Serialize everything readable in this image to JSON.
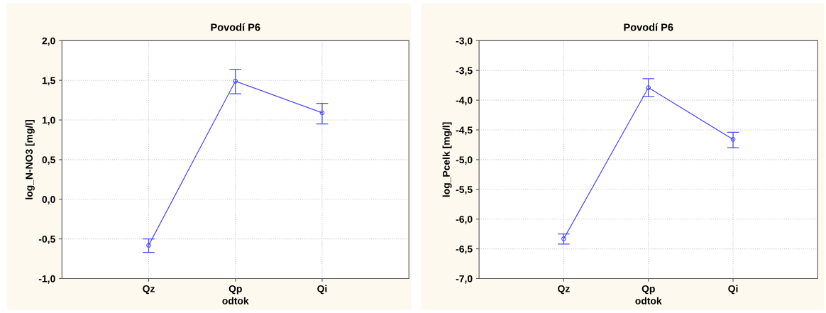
{
  "chart_data": [
    {
      "type": "line",
      "title": "Povodí P6",
      "xlabel": "odtok",
      "ylabel": "log_N-NO3 [mg/l]",
      "categories": [
        "Qz",
        "Qp",
        "Qi"
      ],
      "series": [
        {
          "color": "#4a4aff",
          "values": [
            -0.58,
            1.49,
            1.09
          ],
          "errors": [
            [
              -0.67,
              -0.5
            ],
            [
              1.33,
              1.64
            ],
            [
              0.95,
              1.21
            ]
          ]
        }
      ],
      "ylim": [
        -1,
        2
      ],
      "yticks": [
        {
          "value": -1,
          "label": "-1,0"
        },
        {
          "value": -0.5,
          "label": "-0,5"
        },
        {
          "value": 0,
          "label": "0,0"
        },
        {
          "value": 0.5,
          "label": "0,5"
        },
        {
          "value": 1,
          "label": "1,0"
        },
        {
          "value": 1.5,
          "label": "1,5"
        },
        {
          "value": 2,
          "label": "2,0"
        }
      ],
      "grid": true,
      "marker": "circle",
      "line_style": "solid"
    },
    {
      "type": "line",
      "title": "Povodí P6",
      "xlabel": "odtok",
      "ylabel": "log_Pcelk [mg/l]",
      "categories": [
        "Qz",
        "Qp",
        "Qi"
      ],
      "series": [
        {
          "color": "#4a4aff",
          "values": [
            -6.33,
            -3.79,
            -4.66
          ],
          "errors": [
            [
              -6.42,
              -6.25
            ],
            [
              -3.94,
              -3.64
            ],
            [
              -4.8,
              -4.54
            ]
          ]
        }
      ],
      "ylim": [
        -7,
        -3
      ],
      "yticks": [
        {
          "value": -7,
          "label": "-7,0"
        },
        {
          "value": -6.5,
          "label": "-6,5"
        },
        {
          "value": -6,
          "label": "-6,0"
        },
        {
          "value": -5.5,
          "label": "-5,5"
        },
        {
          "value": -5,
          "label": "-5,0"
        },
        {
          "value": -4.5,
          "label": "-4,5"
        },
        {
          "value": -4,
          "label": "-4,0"
        },
        {
          "value": -3.5,
          "label": "-3,5"
        },
        {
          "value": -3,
          "label": "-3,0"
        }
      ],
      "grid": true,
      "marker": "circle",
      "line_style": "solid"
    }
  ]
}
